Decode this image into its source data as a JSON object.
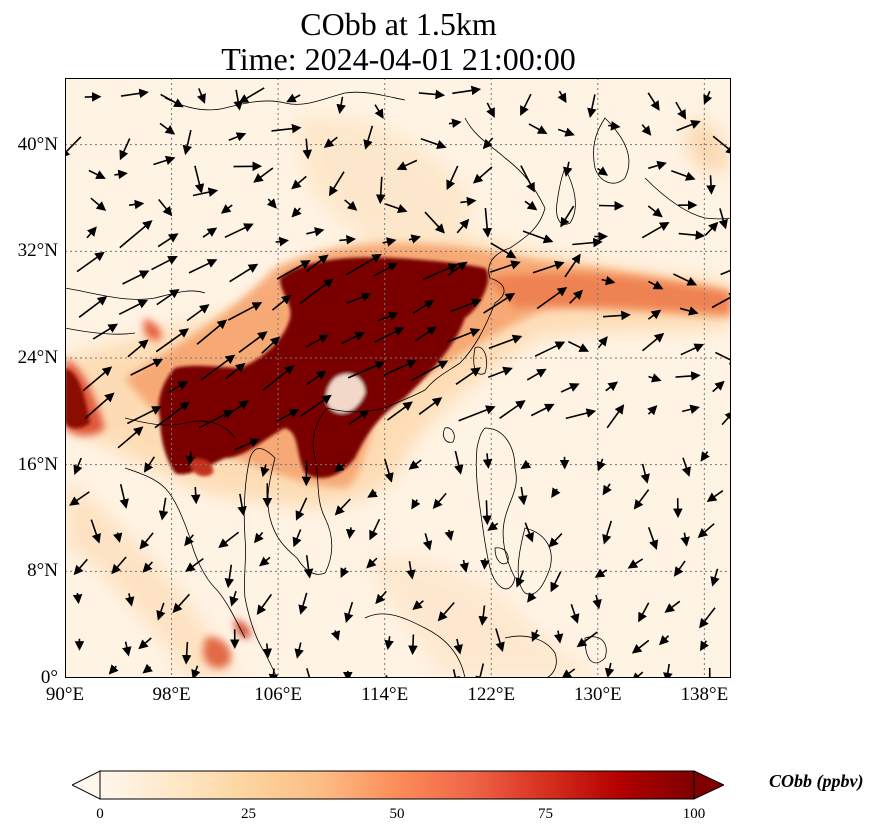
{
  "title": {
    "line1": "CObb at 1.5km",
    "line2": "Time: 2024-04-01 21:00:00"
  },
  "map": {
    "extent": {
      "lon_min": 90,
      "lon_max": 140,
      "lat_min": 0,
      "lat_max": 45
    },
    "lat_ticks": [
      {
        "value": 0,
        "label": "0°"
      },
      {
        "value": 8,
        "label": "8°N"
      },
      {
        "value": 16,
        "label": "16°N"
      },
      {
        "value": 24,
        "label": "24°N"
      },
      {
        "value": 32,
        "label": "32°N"
      },
      {
        "value": 40,
        "label": "40°N"
      }
    ],
    "lon_ticks": [
      {
        "value": 90,
        "label": "90°E"
      },
      {
        "value": 98,
        "label": "98°E"
      },
      {
        "value": 106,
        "label": "106°E"
      },
      {
        "value": 114,
        "label": "114°E"
      },
      {
        "value": 122,
        "label": "122°E"
      },
      {
        "value": 130,
        "label": "130°E"
      },
      {
        "value": 138,
        "label": "138°E"
      }
    ],
    "gridlines": true,
    "plume_color_high": "#7a0000",
    "plume_color_mid": "#e0452b",
    "plume_color_low": "#fdd9a8",
    "background_color": "#fff5e9",
    "vector_field": "wind-arrows"
  },
  "colorbar": {
    "label": "CObb (ppbv)",
    "min": 0,
    "max": 100,
    "ticks": [
      "0",
      "25",
      "50",
      "75",
      "100"
    ],
    "extend": "both",
    "colormap": "OrRd",
    "stops": [
      "#fff7ec",
      "#fee8c8",
      "#fdd49e",
      "#fdbb84",
      "#fc8d59",
      "#ef6548",
      "#d7301f",
      "#b30000",
      "#7f0000"
    ]
  }
}
